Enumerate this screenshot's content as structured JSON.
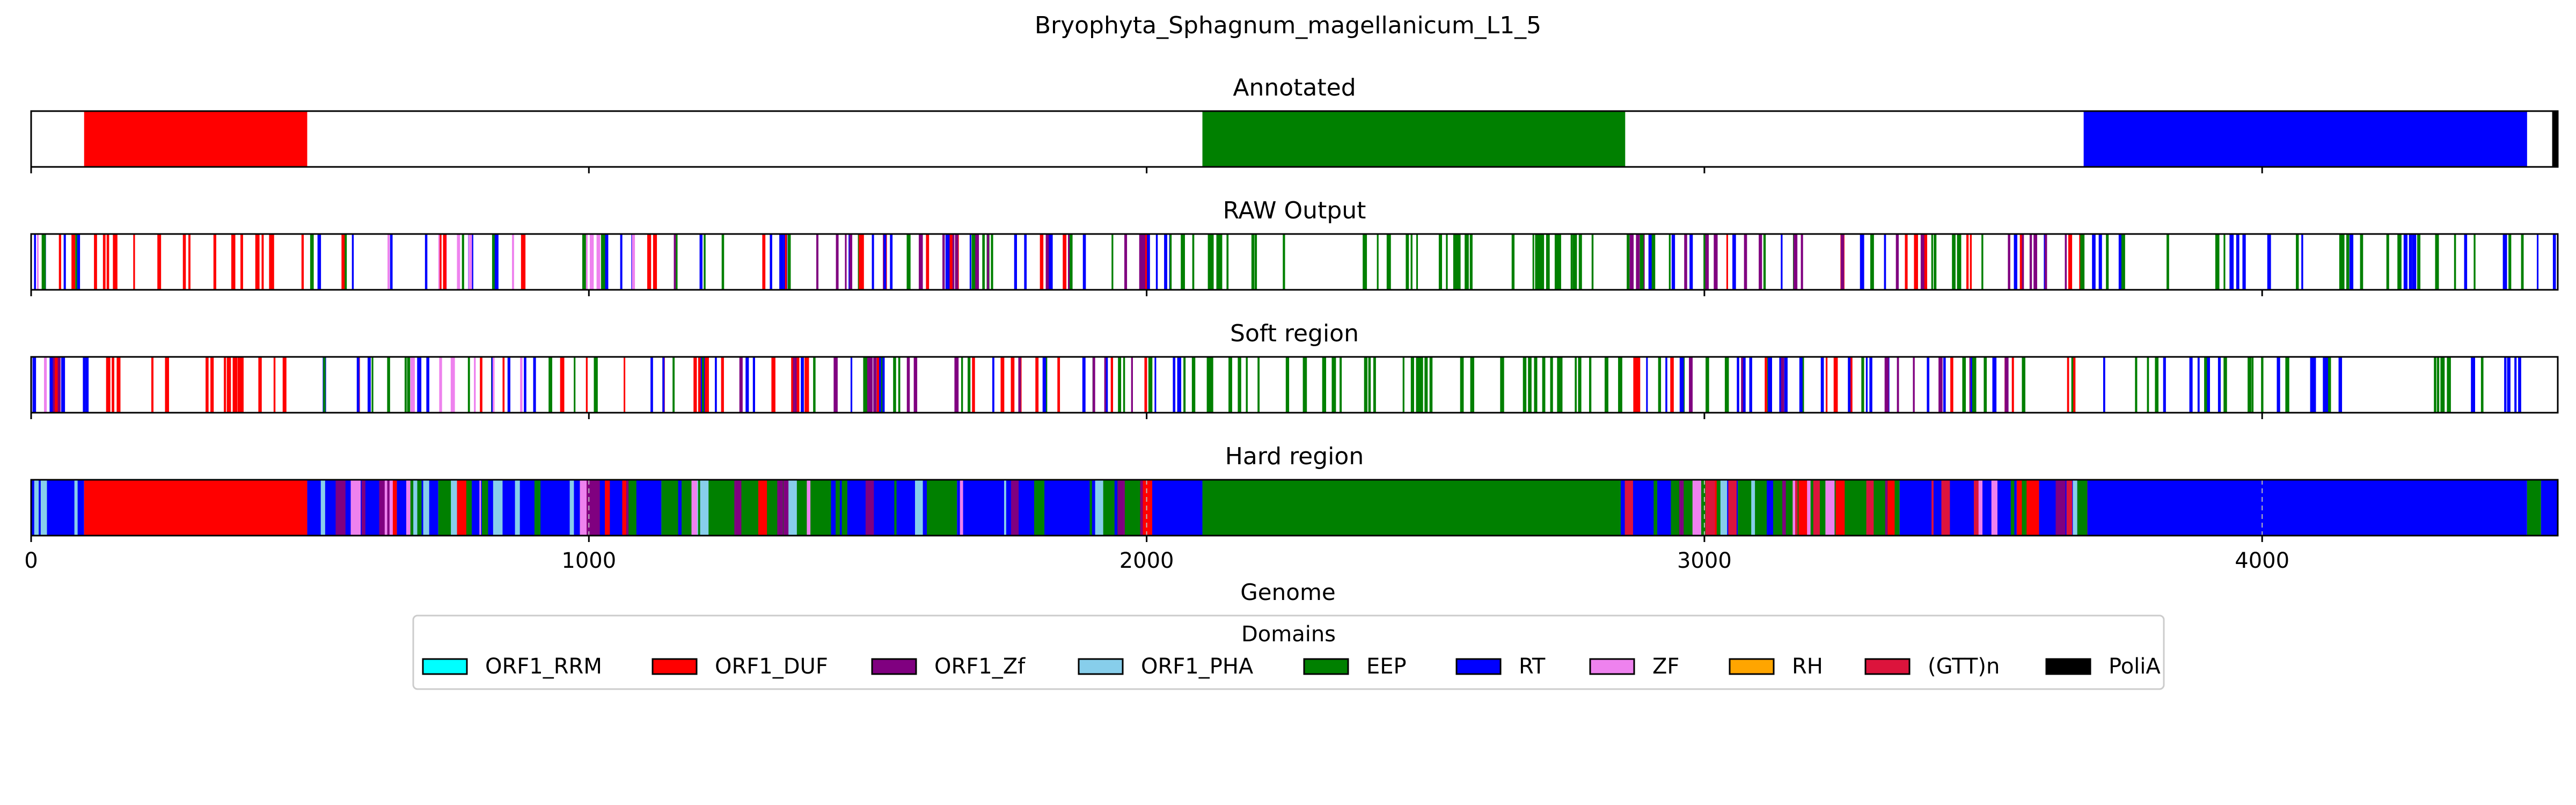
{
  "chart_data": {
    "type": "genome-track",
    "title": "Bryophyta_Sphagnum_magellanicum_L1_5",
    "xlabel": "Genome",
    "xlim": [
      0,
      4530
    ],
    "xticks": [
      0,
      1000,
      2000,
      3000,
      4000
    ],
    "grid": "vertical dashed lines at x ticks on Hard region",
    "legend": {
      "title": "Domains",
      "placement": "bottom-center",
      "entries": [
        {
          "name": "ORF1_RRM",
          "color": "#00FFFF"
        },
        {
          "name": "ORF1_DUF",
          "color": "#FF0000"
        },
        {
          "name": "ORF1_Zf",
          "color": "#800080"
        },
        {
          "name": "ORF1_PHA",
          "color": "#87CEEB"
        },
        {
          "name": "EEP",
          "color": "#008000"
        },
        {
          "name": "RT",
          "color": "#0000FF"
        },
        {
          "name": "ZF",
          "color": "#EE82EE"
        },
        {
          "name": "RH",
          "color": "#FFA500"
        },
        {
          "name": "(GTT)n",
          "color": "#DC143C"
        },
        {
          "name": "PoliA",
          "color": "#000000"
        }
      ]
    },
    "tracks": [
      {
        "title": "Annotated",
        "style": "blocks",
        "segments": [
          {
            "domain": "ORF1_DUF",
            "start": 95,
            "end": 495
          },
          {
            "domain": "EEP",
            "start": 2100,
            "end": 2858
          },
          {
            "domain": "RT",
            "start": 3680,
            "end": 4475
          },
          {
            "domain": "PoliA",
            "start": 4520,
            "end": 4530
          }
        ]
      },
      {
        "title": "RAW Output",
        "style": "hits",
        "zones": [
          {
            "start": 0,
            "end": 100,
            "domains": [
              "RT",
              "ORF1_DUF",
              "EEP",
              "ZF",
              "ORF1_Zf"
            ],
            "density": 0.9
          },
          {
            "start": 100,
            "end": 500,
            "domains": [
              "ORF1_DUF"
            ],
            "density": 0.5
          },
          {
            "start": 500,
            "end": 1120,
            "domains": [
              "RT",
              "EEP",
              "ORF1_DUF",
              "ZF"
            ],
            "density": 0.6
          },
          {
            "start": 1120,
            "end": 2000,
            "domains": [
              "RT",
              "EEP",
              "ORF1_DUF",
              "ORF1_Zf"
            ],
            "density": 0.75
          },
          {
            "start": 2000,
            "end": 2100,
            "domains": [
              "RT",
              "EEP"
            ],
            "density": 0.8
          },
          {
            "start": 2100,
            "end": 2850,
            "domains": [
              "EEP"
            ],
            "density": 0.55
          },
          {
            "start": 2850,
            "end": 3680,
            "domains": [
              "RT",
              "EEP",
              "ORF1_DUF",
              "ORF1_Zf"
            ],
            "density": 0.7
          },
          {
            "start": 3680,
            "end": 4530,
            "domains": [
              "RT",
              "EEP"
            ],
            "density": 0.45
          }
        ]
      },
      {
        "title": "Soft region",
        "style": "hits",
        "zones": [
          {
            "start": 0,
            "end": 100,
            "domains": [
              "RT",
              "ORF1_DUF",
              "EEP",
              "ZF",
              "ORF1_Zf"
            ],
            "density": 0.9
          },
          {
            "start": 100,
            "end": 500,
            "domains": [
              "ORF1_DUF"
            ],
            "density": 0.5
          },
          {
            "start": 500,
            "end": 1120,
            "domains": [
              "RT",
              "EEP",
              "ORF1_DUF",
              "ZF"
            ],
            "density": 0.6
          },
          {
            "start": 1120,
            "end": 2000,
            "domains": [
              "RT",
              "EEP",
              "ORF1_DUF",
              "ORF1_Zf"
            ],
            "density": 0.75
          },
          {
            "start": 2000,
            "end": 2100,
            "domains": [
              "RT",
              "EEP"
            ],
            "density": 0.8
          },
          {
            "start": 2100,
            "end": 2850,
            "domains": [
              "EEP"
            ],
            "density": 0.55
          },
          {
            "start": 2850,
            "end": 3680,
            "domains": [
              "RT",
              "EEP",
              "ORF1_DUF",
              "ORF1_Zf"
            ],
            "density": 0.7
          },
          {
            "start": 3680,
            "end": 4530,
            "domains": [
              "RT",
              "EEP"
            ],
            "density": 0.45
          }
        ]
      },
      {
        "title": "Hard region",
        "style": "filled",
        "segments": [
          {
            "domain": "RT",
            "start": 0,
            "end": 95
          },
          {
            "domain": "ORF1_DUF",
            "start": 95,
            "end": 495
          },
          {
            "domain": "RT",
            "start": 495,
            "end": 640
          },
          {
            "domain": "EEP",
            "start": 640,
            "end": 700
          },
          {
            "domain": "ZF",
            "start": 645,
            "end": 680
          },
          {
            "domain": "RT",
            "start": 700,
            "end": 730
          },
          {
            "domain": "EEP",
            "start": 730,
            "end": 790
          },
          {
            "domain": "RT",
            "start": 790,
            "end": 1000
          },
          {
            "domain": "RT",
            "start": 1000,
            "end": 1130
          },
          {
            "domain": "EEP",
            "start": 1130,
            "end": 1450
          },
          {
            "domain": "RT",
            "start": 1450,
            "end": 1610
          },
          {
            "domain": "EEP",
            "start": 1610,
            "end": 1660
          },
          {
            "domain": "RT",
            "start": 1660,
            "end": 1900
          },
          {
            "domain": "EEP",
            "start": 1900,
            "end": 1990
          },
          {
            "domain": "ORF1_DUF",
            "start": 1990,
            "end": 2010
          },
          {
            "domain": "RT",
            "start": 2010,
            "end": 2100
          },
          {
            "domain": "EEP",
            "start": 2100,
            "end": 2850
          },
          {
            "domain": "RT",
            "start": 2850,
            "end": 2940
          },
          {
            "domain": "EEP",
            "start": 2940,
            "end": 3030
          },
          {
            "domain": "RT",
            "start": 3030,
            "end": 3060
          },
          {
            "domain": "EEP",
            "start": 3060,
            "end": 3350
          },
          {
            "domain": "RT",
            "start": 3350,
            "end": 3560
          },
          {
            "domain": "ORF1_DUF",
            "start": 3560,
            "end": 3600
          },
          {
            "domain": "RT",
            "start": 3600,
            "end": 3680
          },
          {
            "domain": "RT",
            "start": 3680,
            "end": 4475
          },
          {
            "domain": "EEP",
            "start": 4475,
            "end": 4500
          },
          {
            "domain": "RT",
            "start": 4500,
            "end": 4530
          }
        ],
        "overlay_zones": [
          {
            "start": 0,
            "end": 95,
            "domains": [
              "EEP",
              "ORF1_DUF",
              "ORF1_Zf",
              "ORF1_PHA"
            ],
            "density": 0.3
          },
          {
            "start": 495,
            "end": 1990,
            "domains": [
              "EEP",
              "RT",
              "ORF1_DUF",
              "ZF",
              "ORF1_Zf",
              "ORF1_PHA"
            ],
            "density": 0.5
          },
          {
            "start": 2850,
            "end": 3680,
            "domains": [
              "EEP",
              "RT",
              "ORF1_DUF",
              "ZF",
              "ORF1_Zf",
              "ORF1_PHA",
              "(GTT)n"
            ],
            "density": 0.55
          }
        ]
      }
    ]
  }
}
